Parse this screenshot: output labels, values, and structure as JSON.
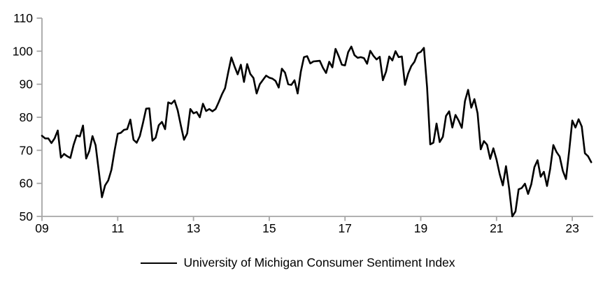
{
  "chart_data": {
    "type": "line",
    "title": "",
    "xlabel": "",
    "ylabel": "",
    "grid": false,
    "legend_position": "bottom-center",
    "axis_color": "#a6a6a6",
    "text_color": "#000000",
    "background_color": "#ffffff",
    "ylim": [
      50,
      110
    ],
    "y_ticks": [
      50,
      60,
      70,
      80,
      90,
      100,
      110
    ],
    "x_tick_labels": [
      "09",
      "11",
      "13",
      "15",
      "17",
      "19",
      "21",
      "23"
    ],
    "months_between_x_ticks": 24,
    "first_point_at_first_tick": true,
    "series": [
      {
        "name": "University of Michigan Consumer Sentiment Index",
        "color": "#000000",
        "line_width": 2.6,
        "frequency": "monthly",
        "values": [
          74.4,
          73.6,
          73.6,
          72.2,
          73.6,
          76.0,
          67.8,
          68.9,
          68.2,
          67.7,
          71.6,
          74.5,
          74.2,
          77.5,
          67.5,
          69.8,
          74.3,
          71.5,
          63.7,
          55.8,
          59.4,
          60.9,
          64.1,
          69.9,
          75.0,
          75.3,
          76.2,
          76.4,
          79.3,
          73.2,
          72.3,
          74.3,
          78.3,
          82.6,
          82.7,
          72.9,
          73.8,
          77.6,
          78.6,
          76.4,
          84.5,
          84.1,
          85.1,
          82.1,
          77.5,
          73.2,
          75.1,
          82.5,
          81.2,
          81.6,
          80.0,
          84.1,
          81.9,
          82.5,
          81.8,
          82.5,
          84.6,
          86.9,
          88.8,
          93.6,
          98.1,
          95.4,
          93.0,
          95.9,
          90.7,
          96.1,
          93.1,
          91.9,
          87.2,
          90.0,
          91.3,
          92.6,
          92.0,
          91.7,
          91.0,
          89.0,
          94.7,
          93.5,
          90.0,
          89.8,
          91.2,
          87.2,
          93.8,
          98.2,
          98.5,
          96.3,
          96.9,
          97.0,
          97.1,
          95.0,
          93.4,
          96.8,
          95.1,
          100.7,
          98.5,
          95.9,
          95.7,
          99.7,
          101.4,
          98.8,
          98.0,
          98.2,
          97.9,
          96.2,
          100.1,
          98.6,
          97.5,
          98.3,
          91.2,
          93.8,
          98.4,
          97.2,
          100.0,
          98.2,
          98.4,
          89.8,
          93.2,
          95.5,
          96.8,
          99.3,
          99.8,
          101.0,
          89.1,
          71.8,
          72.3,
          78.1,
          72.5,
          74.1,
          80.4,
          81.8,
          76.9,
          80.7,
          79.0,
          76.8,
          84.9,
          88.3,
          82.9,
          85.5,
          81.2,
          70.3,
          72.8,
          71.7,
          67.4,
          70.6,
          67.2,
          62.8,
          59.4,
          65.2,
          58.4,
          50.0,
          51.5,
          58.2,
          58.6,
          59.9,
          56.8,
          59.7,
          64.9,
          67.0,
          62.0,
          63.5,
          59.2,
          64.4,
          71.6,
          69.5,
          68.1,
          63.8,
          61.3,
          69.7,
          79.0,
          76.9,
          79.4,
          77.2,
          69.1,
          68.2,
          66.4
        ]
      }
    ]
  },
  "legend": {
    "label": "University of Michigan Consumer Sentiment Index"
  }
}
